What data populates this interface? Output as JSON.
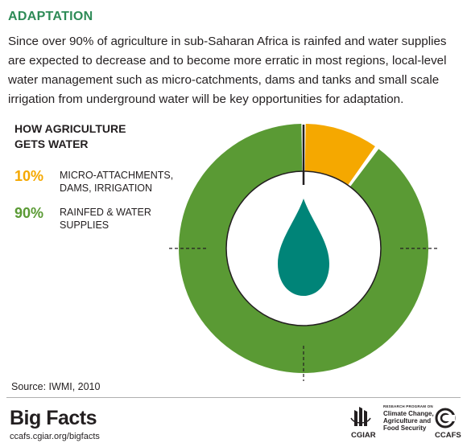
{
  "header": {
    "title": "ADAPTATION",
    "intro": "Since over 90% of agriculture in sub-Saharan Africa is rainfed and water supplies are expected to decrease and to become more erratic in most regions, local-level water management such as micro-catchments, dams and tanks and small scale irrigation from underground water will be key opportunities for adaptation."
  },
  "chart_data": {
    "type": "pie",
    "variant": "donut",
    "title": "HOW AGRICULTURE\nGETS WATER",
    "slices": [
      {
        "label": "MICRO-ATTACHMENTS,\nDAMS, IRRIGATION",
        "value": 10,
        "display": "10%",
        "color": "#f5a800"
      },
      {
        "label": "RAINFED & WATER\nSUPPLIES",
        "value": 90,
        "display": "90%",
        "color": "#5a9a34"
      }
    ],
    "center_icon": "water-drop-icon",
    "center_icon_color": "#008478"
  },
  "footer": {
    "source": "Source: IWMI, 2010",
    "brand": "Big Facts",
    "url": "ccafs.cgiar.org/bigfacts",
    "cgiar_label": "CGIAR",
    "program_small": "RESEARCH PROGRAM ON",
    "program_name": "Climate Change,\nAgriculture and\nFood Security",
    "ccafs_label": "CCAFS"
  },
  "colors": {
    "title_green": "#2e8b57",
    "legend_green": "#5a9a34",
    "legend_orange": "#f5a800"
  }
}
